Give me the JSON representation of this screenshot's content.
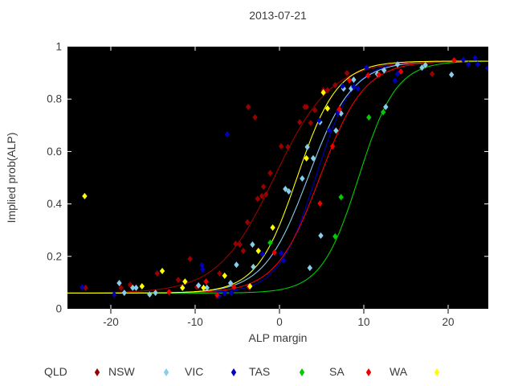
{
  "title": "2013-07-21",
  "x_axis": {
    "label": "ALP margin"
  },
  "y_axis": {
    "label": "Implied prob(ALP)"
  },
  "legend": [
    {
      "label": "QLD",
      "color": "#990000"
    },
    {
      "label": "NSW",
      "color": "#87CEEB"
    },
    {
      "label": "VIC",
      "color": "#0000BB"
    },
    {
      "label": "TAS",
      "color": "#00CC00"
    },
    {
      "label": "SA",
      "color": "#EE0000"
    },
    {
      "label": "WA",
      "color": "#FFFF00"
    }
  ],
  "chart_data": {
    "type": "scatter",
    "title": "2013-07-21",
    "xlabel": "ALP margin",
    "ylabel": "Implied prob(ALP)",
    "xlim": [
      -25.14,
      24.76
    ],
    "ylim": [
      0,
      1
    ],
    "x_ticks": [
      -20,
      -10,
      0,
      10,
      20
    ],
    "y_ticks": [
      0,
      0.2,
      0.4,
      0.6,
      0.8,
      1
    ],
    "plot_bg": "#000000",
    "inner_tick_color": "#ffffff",
    "outer_tick_color": "#000000",
    "grid": false,
    "legend_position": "bottom",
    "marker": "diamond",
    "curve_model": "logistic p = lo + (hi-lo)/(1+exp(-k*(x-x0)))",
    "asymptotes": {
      "lower": 0.06,
      "upper": 0.945
    },
    "series": [
      {
        "name": "QLD",
        "color": "#990000",
        "curve": {
          "x0": -0.6,
          "k": 0.3
        },
        "points": [
          [
            -23,
            0.08
          ],
          [
            -18.8,
            0.08
          ],
          [
            -17.7,
            0.092
          ],
          [
            -14.5,
            0.135
          ],
          [
            -12,
            0.11
          ],
          [
            -10.6,
            0.19
          ],
          [
            -9.8,
            0.083
          ],
          [
            -7.1,
            0.135
          ],
          [
            -5.2,
            0.248
          ],
          [
            -4.7,
            0.245
          ],
          [
            -4.3,
            0.221
          ],
          [
            -3.8,
            0.33
          ],
          [
            -3.7,
            0.77
          ],
          [
            -2.9,
            0.73
          ],
          [
            -2.6,
            0.42
          ],
          [
            -2.1,
            0.43
          ],
          [
            -1.9,
            0.466
          ],
          [
            -1.6,
            0.436
          ],
          [
            -1.1,
            0.518
          ],
          [
            0.2,
            0.62
          ],
          [
            1,
            0.617
          ],
          [
            2.4,
            0.712
          ],
          [
            3,
            0.77
          ],
          [
            3.2,
            0.77
          ],
          [
            3.7,
            0.709
          ],
          [
            4.2,
            0.758
          ],
          [
            5.2,
            0.834
          ],
          [
            5.7,
            0.834
          ],
          [
            6.6,
            0.853
          ],
          [
            8,
            0.899
          ],
          [
            18.1,
            0.896
          ]
        ]
      },
      {
        "name": "NSW",
        "color": "#87CEEB",
        "curve": {
          "x0": 3.4,
          "k": 0.38
        },
        "points": [
          [
            -19,
            0.098
          ],
          [
            -18.4,
            0.061
          ],
          [
            -17.4,
            0.08
          ],
          [
            -17,
            0.08
          ],
          [
            -15.4,
            0.055
          ],
          [
            -14.7,
            0.061
          ],
          [
            -9.6,
            0.089
          ],
          [
            -8.6,
            0.08
          ],
          [
            -5.8,
            0.098
          ],
          [
            -5.1,
            0.168
          ],
          [
            -3.2,
            0.245
          ],
          [
            -3.1,
            0.16
          ],
          [
            0.7,
            0.457
          ],
          [
            1.1,
            0.448
          ],
          [
            2.7,
            0.497
          ],
          [
            3.3,
            0.617
          ],
          [
            3.6,
            0.156
          ],
          [
            4,
            0.574
          ],
          [
            4.8,
            0.712
          ],
          [
            4.9,
            0.279
          ],
          [
            6.7,
            0.68
          ],
          [
            7.3,
            0.745
          ],
          [
            7.6,
            0.84
          ],
          [
            8.5,
            0.84
          ],
          [
            8.8,
            0.874
          ],
          [
            11.6,
            0.896
          ],
          [
            12.4,
            0.91
          ],
          [
            12.6,
            0.77
          ],
          [
            14,
            0.932
          ],
          [
            16.9,
            0.92
          ],
          [
            17.3,
            0.93
          ],
          [
            20.4,
            0.893
          ]
        ]
      },
      {
        "name": "VIC",
        "color": "#0000BB",
        "curve": {
          "x0": 4.3,
          "k": 0.45
        },
        "points": [
          [
            -23.4,
            0.083
          ],
          [
            -19.6,
            0.055
          ],
          [
            -9.2,
            0.166
          ],
          [
            -9.1,
            0.15
          ],
          [
            -7.2,
            0.049
          ],
          [
            -6.5,
            0.058
          ],
          [
            -6.2,
            0.666
          ],
          [
            -5.7,
            0.061
          ],
          [
            -2,
            0.209
          ],
          [
            0.2,
            0.212
          ],
          [
            0.5,
            0.184
          ],
          [
            4.7,
            0.718
          ],
          [
            5.9,
            0.681
          ],
          [
            6.9,
            0.748
          ],
          [
            7.5,
            0.85
          ],
          [
            8.8,
            0.847
          ],
          [
            9.3,
            0.84
          ],
          [
            10.3,
            0.92
          ],
          [
            13.7,
            0.87
          ],
          [
            14,
            0.896
          ],
          [
            21.8,
            0.95
          ],
          [
            22.4,
            0.933
          ],
          [
            23.2,
            0.957
          ],
          [
            23.5,
            0.933
          ],
          [
            24.7,
            0.917
          ]
        ]
      },
      {
        "name": "TAS",
        "color": "#00CC00",
        "curve": {
          "x0": 9.4,
          "k": 0.45
        },
        "points": [
          [
            -1.1,
            0.252
          ],
          [
            6.6,
            0.276
          ],
          [
            7.3,
            0.426
          ],
          [
            10.6,
            0.73
          ],
          [
            12.3,
            0.75
          ]
        ]
      },
      {
        "name": "SA",
        "color": "#EE0000",
        "curve": {
          "x0": 4.8,
          "k": 0.38
        },
        "points": [
          [
            -13.1,
            0.064
          ],
          [
            -8.7,
            0.104
          ],
          [
            -7.4,
            0.052
          ],
          [
            -5.4,
            0.083
          ],
          [
            -3.6,
            0.083
          ],
          [
            -0.6,
            0.215
          ],
          [
            4.8,
            0.402
          ],
          [
            6.3,
            0.62
          ],
          [
            7.1,
            0.761
          ],
          [
            8.3,
            0.871
          ],
          [
            10.5,
            0.89
          ],
          [
            11.8,
            0.893
          ],
          [
            14.4,
            0.905
          ],
          [
            20.7,
            0.948
          ]
        ]
      },
      {
        "name": "WA",
        "color": "#FFFF00",
        "curve": {
          "x0": 2.1,
          "k": 0.42
        },
        "points": [
          [
            -23.1,
            0.43
          ],
          [
            -16.3,
            0.086
          ],
          [
            -13.9,
            0.144
          ],
          [
            -11.5,
            0.08
          ],
          [
            -11.2,
            0.104
          ],
          [
            -9,
            0.08
          ],
          [
            -6.5,
            0.126
          ],
          [
            -3.5,
            0.086
          ],
          [
            -2.5,
            0.221
          ],
          [
            -0.8,
            0.31
          ],
          [
            3.2,
            0.574
          ],
          [
            5.2,
            0.825
          ],
          [
            5.7,
            0.764
          ]
        ]
      }
    ],
    "curve_draw_order": [
      "VIC",
      "SA",
      "NSW",
      "TAS",
      "QLD",
      "WA"
    ]
  }
}
